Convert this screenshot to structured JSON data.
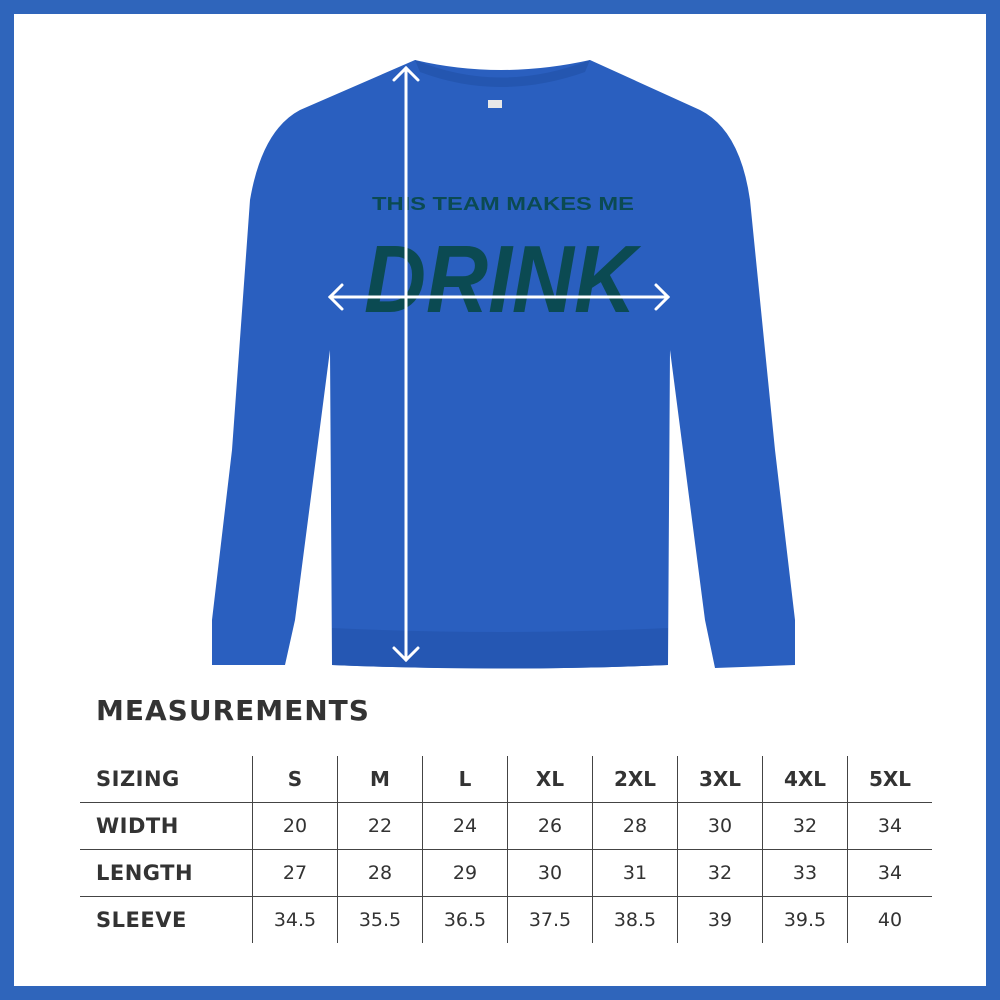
{
  "product": {
    "garment": "crewneck sweatshirt",
    "garment_color": "#2a5fbf",
    "print_line1": "THIS TEAM MAKES ME",
    "print_line2": "DRINK",
    "print_color": "#0b4a52",
    "frame_color": "#2f65bb"
  },
  "measurements": {
    "title": "MEASUREMENTS",
    "header": {
      "label": "SIZING",
      "sizes": [
        "S",
        "M",
        "L",
        "XL",
        "2XL",
        "3XL",
        "4XL",
        "5XL"
      ]
    },
    "rows": [
      {
        "label": "WIDTH",
        "values": [
          "20",
          "22",
          "24",
          "26",
          "28",
          "30",
          "32",
          "34"
        ]
      },
      {
        "label": "LENGTH",
        "values": [
          "27",
          "28",
          "29",
          "30",
          "31",
          "32",
          "33",
          "34"
        ]
      },
      {
        "label": "SLEEVE",
        "values": [
          "34.5",
          "35.5",
          "36.5",
          "37.5",
          "38.5",
          "39",
          "39.5",
          "40"
        ]
      }
    ]
  }
}
